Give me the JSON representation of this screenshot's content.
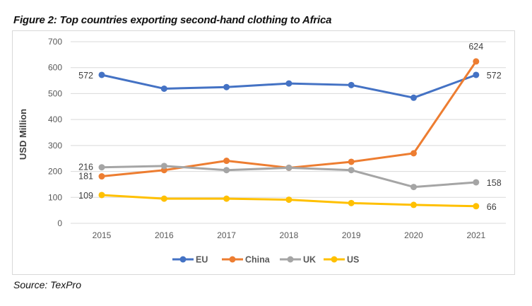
{
  "chart_data": {
    "type": "line",
    "title": "Figure 2: Top countries exporting second-hand clothing to Africa",
    "xlabel": "",
    "ylabel": "USD Million",
    "ylim": [
      0,
      700
    ],
    "yticks": [
      0,
      100,
      200,
      300,
      400,
      500,
      600,
      700
    ],
    "grid": true,
    "legend": "bottom",
    "categories": [
      "2015",
      "2016",
      "2017",
      "2018",
      "2019",
      "2020",
      "2021"
    ],
    "series": [
      {
        "name": "EU",
        "color": "#4472C4",
        "values": [
          572,
          519,
          525,
          539,
          533,
          484,
          572
        ],
        "labels": {
          "0": "572",
          "6": "572"
        }
      },
      {
        "name": "China",
        "color": "#ED7D31",
        "values": [
          181,
          205,
          241,
          214,
          237,
          270,
          624
        ],
        "labels": {
          "0": "181",
          "6": "624"
        }
      },
      {
        "name": "UK",
        "color": "#A5A5A5",
        "values": [
          216,
          221,
          205,
          214,
          205,
          140,
          158
        ],
        "labels": {
          "0": "216",
          "6": "158"
        }
      },
      {
        "name": "US",
        "color": "#FFC000",
        "values": [
          109,
          95,
          95,
          91,
          78,
          71,
          66
        ],
        "labels": {
          "0": "109",
          "6": "66"
        }
      }
    ]
  },
  "source": "Source: TexPro"
}
